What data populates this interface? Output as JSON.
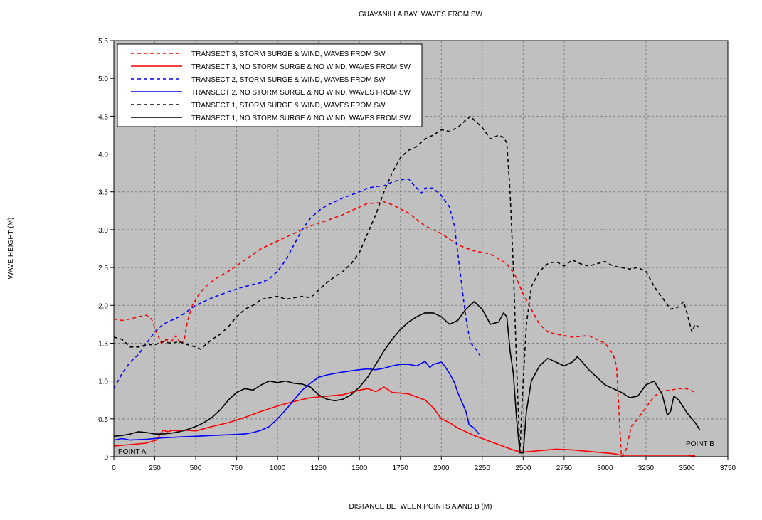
{
  "chart_data": {
    "type": "line",
    "title": "GUAYANILLA BAY: WAVES FROM SW",
    "xlabel": "DISTANCE BETWEEN POINTS A AND B (M)",
    "ylabel": "WAVE HEIGHT (M)",
    "xlim": [
      0,
      3750
    ],
    "ylim": [
      0,
      5.5
    ],
    "xticks": [
      0,
      250,
      500,
      750,
      1000,
      1250,
      1500,
      1750,
      2000,
      2250,
      2500,
      2750,
      3000,
      3250,
      3500,
      3750
    ],
    "yticks": [
      0,
      0.5,
      1.0,
      1.5,
      2.0,
      2.5,
      3.0,
      3.5,
      4.0,
      4.5,
      5.0,
      5.5
    ],
    "ytick_labels": [
      "0",
      "0.5",
      "1.0",
      "1.5",
      "2.0",
      "2.5",
      "3.0",
      "3.5",
      "4.0",
      "4.5",
      "5.0",
      "5.5"
    ],
    "grid": true,
    "legend_position": "top-left",
    "annotations": [
      {
        "text": "POINT A",
        "x": 30,
        "y": 0.07
      },
      {
        "text": "POINT B",
        "x": 3490,
        "y": 0.17
      }
    ],
    "series": [
      {
        "name": "TRANSECT 3, STORM SURGE & WIND, WAVES FROM SW",
        "color": "#ff0000",
        "dash": true,
        "x": [
          0,
          50,
          100,
          150,
          200,
          230,
          260,
          290,
          320,
          350,
          380,
          410,
          430,
          450,
          480,
          520,
          560,
          620,
          700,
          800,
          900,
          1000,
          1100,
          1200,
          1300,
          1400,
          1500,
          1550,
          1600,
          1650,
          1700,
          1800,
          1900,
          2000,
          2100,
          2200,
          2300,
          2400,
          2450,
          2500,
          2550,
          2600,
          2650,
          2700,
          2800,
          2900,
          3000,
          3050,
          3070,
          3100,
          3130,
          3160,
          3200,
          3250,
          3300,
          3350,
          3400,
          3450,
          3500,
          3550
        ],
        "y": [
          1.82,
          1.8,
          1.82,
          1.85,
          1.87,
          1.82,
          1.65,
          1.5,
          1.55,
          1.52,
          1.6,
          1.48,
          1.55,
          1.8,
          2.0,
          2.15,
          2.25,
          2.35,
          2.45,
          2.6,
          2.75,
          2.85,
          2.95,
          3.05,
          3.12,
          3.2,
          3.3,
          3.35,
          3.35,
          3.37,
          3.33,
          3.22,
          3.05,
          2.95,
          2.8,
          2.72,
          2.68,
          2.55,
          2.4,
          2.15,
          1.95,
          1.75,
          1.65,
          1.62,
          1.58,
          1.6,
          1.5,
          1.35,
          1.2,
          0.0,
          0.1,
          0.4,
          0.5,
          0.65,
          0.8,
          0.87,
          0.88,
          0.9,
          0.9,
          0.85
        ]
      },
      {
        "name": "TRANSECT 3, NO STORM SURGE & NO WIND, WAVES FROM SW",
        "color": "#ff0000",
        "dash": false,
        "x": [
          0,
          100,
          200,
          260,
          300,
          330,
          360,
          400,
          450,
          500,
          600,
          700,
          800,
          900,
          1000,
          1100,
          1200,
          1300,
          1400,
          1500,
          1550,
          1600,
          1650,
          1700,
          1800,
          1900,
          1950,
          2000,
          2050,
          2100,
          2200,
          2300,
          2400,
          2450,
          2500,
          2600,
          2700,
          2800,
          2900,
          3000,
          3050,
          3100,
          3200,
          3300,
          3400,
          3500,
          3550
        ],
        "y": [
          0.14,
          0.16,
          0.18,
          0.22,
          0.35,
          0.33,
          0.35,
          0.34,
          0.35,
          0.34,
          0.4,
          0.45,
          0.52,
          0.6,
          0.67,
          0.73,
          0.78,
          0.8,
          0.82,
          0.88,
          0.9,
          0.86,
          0.92,
          0.85,
          0.83,
          0.75,
          0.65,
          0.5,
          0.45,
          0.38,
          0.28,
          0.2,
          0.12,
          0.08,
          0.06,
          0.08,
          0.1,
          0.09,
          0.07,
          0.05,
          0.04,
          0.02,
          0.02,
          0.02,
          0.02,
          0.02,
          0.01
        ]
      },
      {
        "name": "TRANSECT 2, STORM SURGE & WIND, WAVES FROM SW",
        "color": "#0000ff",
        "dash": true,
        "x": [
          0,
          50,
          100,
          150,
          200,
          250,
          300,
          400,
          500,
          600,
          700,
          800,
          900,
          950,
          1000,
          1050,
          1100,
          1150,
          1200,
          1250,
          1300,
          1400,
          1500,
          1550,
          1600,
          1650,
          1700,
          1750,
          1800,
          1850,
          1880,
          1900,
          1950,
          2000,
          2050,
          2080,
          2100,
          2120,
          2140,
          2160,
          2180,
          2200,
          2220,
          2240
        ],
        "y": [
          0.9,
          1.1,
          1.25,
          1.35,
          1.5,
          1.65,
          1.75,
          1.85,
          2.0,
          2.1,
          2.18,
          2.25,
          2.3,
          2.35,
          2.45,
          2.6,
          2.8,
          3.0,
          3.15,
          3.25,
          3.32,
          3.42,
          3.5,
          3.55,
          3.57,
          3.58,
          3.63,
          3.66,
          3.67,
          3.55,
          3.48,
          3.55,
          3.55,
          3.45,
          3.3,
          3.05,
          2.7,
          2.35,
          2.0,
          1.7,
          1.5,
          1.45,
          1.4,
          1.32
        ]
      },
      {
        "name": "TRANSECT 2, NO STORM SURGE & NO WIND, WAVES FROM SW",
        "color": "#0000ff",
        "dash": false,
        "x": [
          0,
          50,
          100,
          200,
          300,
          400,
          500,
          600,
          700,
          800,
          850,
          900,
          950,
          1000,
          1050,
          1100,
          1150,
          1200,
          1250,
          1300,
          1400,
          1500,
          1550,
          1600,
          1650,
          1700,
          1750,
          1800,
          1850,
          1900,
          1930,
          1950,
          2000,
          2020,
          2050,
          2080,
          2100,
          2120,
          2150,
          2170,
          2200,
          2230
        ],
        "y": [
          0.22,
          0.24,
          0.22,
          0.23,
          0.25,
          0.26,
          0.27,
          0.28,
          0.29,
          0.3,
          0.32,
          0.35,
          0.4,
          0.5,
          0.62,
          0.75,
          0.88,
          0.97,
          1.05,
          1.08,
          1.12,
          1.15,
          1.16,
          1.15,
          1.17,
          1.2,
          1.22,
          1.22,
          1.2,
          1.26,
          1.18,
          1.22,
          1.25,
          1.2,
          1.1,
          0.98,
          0.85,
          0.75,
          0.6,
          0.42,
          0.38,
          0.3
        ]
      },
      {
        "name": "TRANSECT 1, STORM SURGE & WIND, WAVES FROM SW",
        "color": "#000000",
        "dash": true,
        "x": [
          0,
          50,
          100,
          150,
          200,
          250,
          300,
          350,
          400,
          450,
          500,
          530,
          560,
          600,
          650,
          700,
          750,
          800,
          850,
          900,
          950,
          1000,
          1050,
          1100,
          1150,
          1200,
          1250,
          1300,
          1350,
          1400,
          1450,
          1500,
          1550,
          1600,
          1650,
          1700,
          1750,
          1800,
          1850,
          1900,
          1950,
          2000,
          2050,
          2100,
          2150,
          2180,
          2200,
          2250,
          2300,
          2350,
          2380,
          2400,
          2420,
          2440,
          2460,
          2480,
          2500,
          2520,
          2550,
          2600,
          2650,
          2700,
          2750,
          2800,
          2850,
          2900,
          2950,
          3000,
          3050,
          3100,
          3150,
          3200,
          3250,
          3300,
          3350,
          3400,
          3450,
          3480,
          3500,
          3530,
          3550,
          3580
        ],
        "y": [
          1.58,
          1.55,
          1.45,
          1.45,
          1.48,
          1.48,
          1.52,
          1.5,
          1.52,
          1.48,
          1.45,
          1.42,
          1.48,
          1.55,
          1.62,
          1.72,
          1.85,
          1.95,
          2.0,
          2.08,
          2.1,
          2.12,
          2.08,
          2.1,
          2.12,
          2.1,
          2.2,
          2.3,
          2.38,
          2.45,
          2.55,
          2.7,
          2.95,
          3.2,
          3.5,
          3.75,
          3.95,
          4.05,
          4.1,
          4.2,
          4.25,
          4.32,
          4.3,
          4.35,
          4.45,
          4.5,
          4.45,
          4.35,
          4.2,
          4.25,
          4.22,
          4.15,
          3.5,
          2.5,
          1.2,
          0.05,
          1.0,
          1.75,
          2.25,
          2.45,
          2.55,
          2.58,
          2.52,
          2.6,
          2.55,
          2.52,
          2.55,
          2.58,
          2.52,
          2.5,
          2.48,
          2.5,
          2.45,
          2.25,
          2.1,
          1.95,
          1.98,
          2.05,
          1.9,
          1.65,
          1.75,
          1.7
        ]
      },
      {
        "name": "TRANSECT 1, NO STORM SURGE & NO WIND, WAVES FROM SW",
        "color": "#000000",
        "dash": false,
        "x": [
          0,
          50,
          100,
          150,
          200,
          250,
          300,
          350,
          400,
          450,
          500,
          550,
          600,
          650,
          700,
          750,
          800,
          850,
          900,
          950,
          1000,
          1050,
          1100,
          1150,
          1200,
          1250,
          1300,
          1350,
          1400,
          1450,
          1500,
          1550,
          1600,
          1650,
          1700,
          1750,
          1800,
          1850,
          1900,
          1950,
          2000,
          2050,
          2100,
          2150,
          2200,
          2250,
          2300,
          2350,
          2380,
          2400,
          2420,
          2440,
          2460,
          2480,
          2500,
          2520,
          2550,
          2600,
          2650,
          2700,
          2750,
          2800,
          2830,
          2850,
          2900,
          2950,
          3000,
          3050,
          3100,
          3150,
          3200,
          3250,
          3300,
          3350,
          3380,
          3400,
          3420,
          3450,
          3500,
          3550,
          3580
        ],
        "y": [
          0.27,
          0.28,
          0.3,
          0.33,
          0.32,
          0.3,
          0.3,
          0.31,
          0.33,
          0.36,
          0.4,
          0.45,
          0.52,
          0.62,
          0.75,
          0.85,
          0.9,
          0.88,
          0.95,
          1.0,
          0.98,
          1.0,
          0.97,
          0.96,
          0.92,
          0.82,
          0.76,
          0.74,
          0.76,
          0.82,
          0.92,
          1.05,
          1.22,
          1.4,
          1.55,
          1.68,
          1.78,
          1.85,
          1.9,
          1.9,
          1.85,
          1.75,
          1.8,
          1.95,
          2.05,
          1.95,
          1.75,
          1.78,
          1.9,
          1.85,
          1.4,
          1.1,
          0.5,
          0.05,
          0.05,
          0.6,
          1.0,
          1.2,
          1.3,
          1.25,
          1.2,
          1.25,
          1.32,
          1.28,
          1.15,
          1.05,
          0.95,
          0.9,
          0.85,
          0.78,
          0.8,
          0.95,
          1.0,
          0.82,
          0.55,
          0.6,
          0.8,
          0.75,
          0.58,
          0.45,
          0.35
        ]
      }
    ]
  }
}
